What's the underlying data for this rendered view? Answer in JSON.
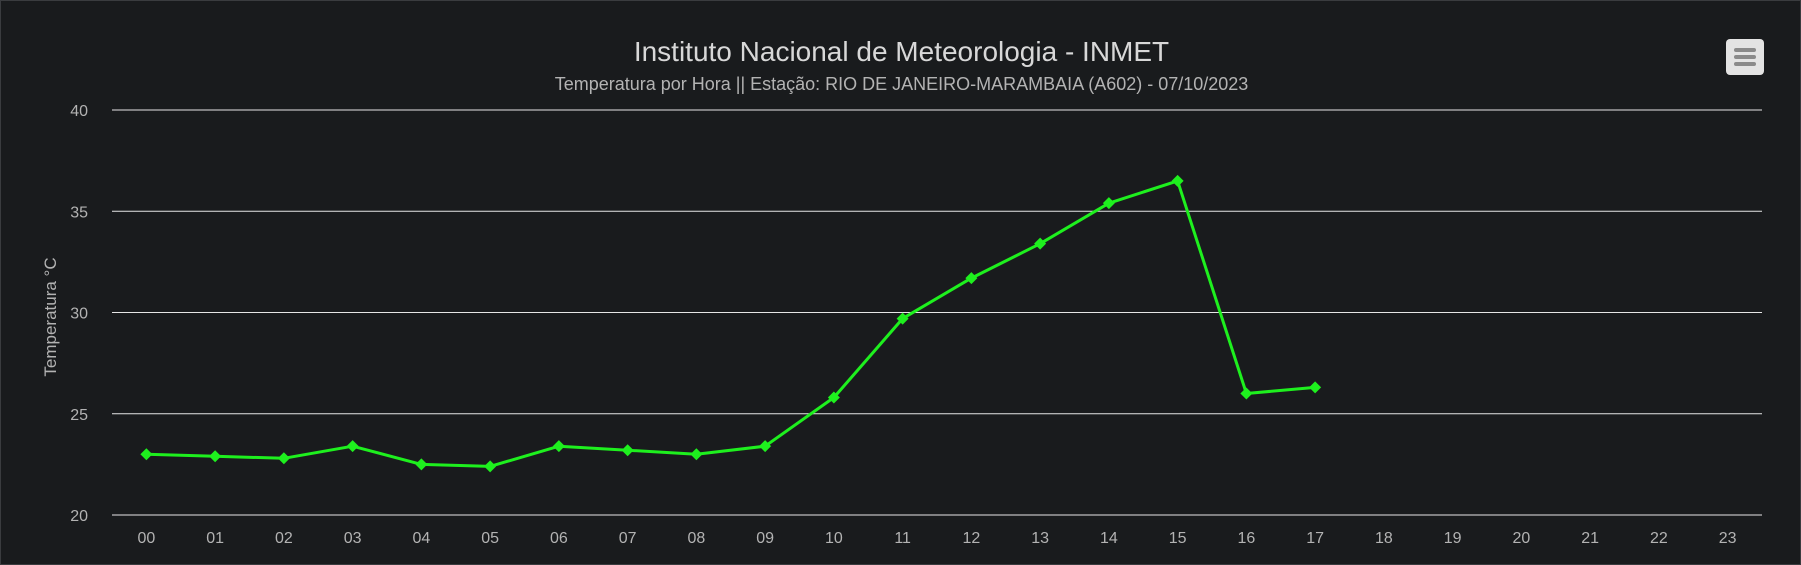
{
  "chart_data": {
    "type": "line",
    "title": "Instituto Nacional de Meteorologia - INMET",
    "subtitle": "Temperatura por Hora || Estação: RIO DE JANEIRO-MARAMBAIA (A602) - 07/10/2023",
    "xlabel": "",
    "ylabel": "Temperatura °C",
    "categories": [
      "00",
      "01",
      "02",
      "03",
      "04",
      "05",
      "06",
      "07",
      "08",
      "09",
      "10",
      "11",
      "12",
      "13",
      "14",
      "15",
      "16",
      "17",
      "18",
      "19",
      "20",
      "21",
      "22",
      "23"
    ],
    "series": [
      {
        "values": [
          23.0,
          22.9,
          22.8,
          23.4,
          22.5,
          22.4,
          23.4,
          23.2,
          23.0,
          23.4,
          25.8,
          29.7,
          31.7,
          33.4,
          35.4,
          36.5,
          26.0,
          26.3,
          null,
          null,
          null,
          null,
          null,
          null
        ]
      }
    ],
    "ylim": [
      20,
      40
    ],
    "yticks": [
      "20",
      "25",
      "30",
      "35",
      "40"
    ],
    "grid": true,
    "legend": "none",
    "colors": {
      "background": "#191b1d",
      "line": "#1ef01e",
      "grid": "#e6e6e6",
      "text": "#b3b3b3",
      "title": "#d8d8d8"
    }
  },
  "menu": {
    "icon": "hamburger-menu-icon"
  }
}
